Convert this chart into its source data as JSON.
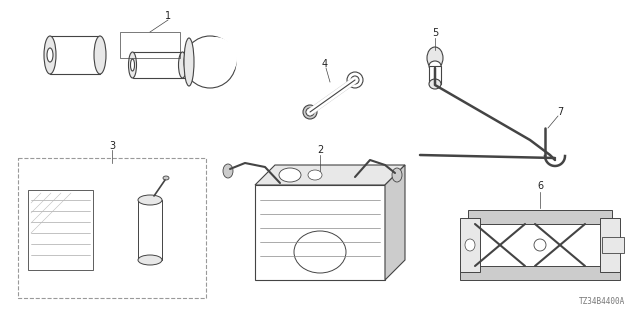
{
  "part_number": "TZ34B4400A",
  "background_color": "#ffffff",
  "line_color": "#444444",
  "shade_color": "#cccccc",
  "light_shade": "#e8e8e8",
  "label_color": "#222222"
}
